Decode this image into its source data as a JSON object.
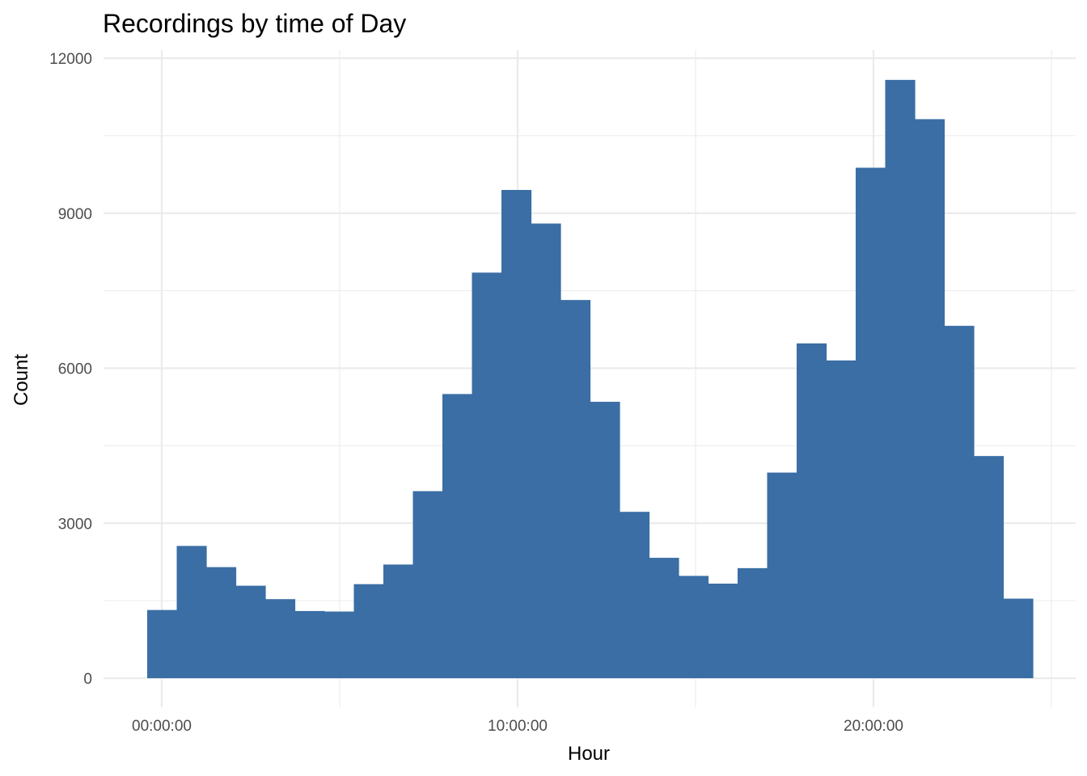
{
  "chart_data": {
    "type": "bar",
    "title": "Recordings by time of Day",
    "xlabel": "Hour",
    "ylabel": "Count",
    "x_ticks": [
      "00:00:00",
      "10:00:00",
      "20:00:00"
    ],
    "y_ticks": [
      "0",
      "3000",
      "6000",
      "9000",
      "12000"
    ],
    "bins": [
      "00:00",
      "00:50",
      "01:40",
      "02:30",
      "03:20",
      "04:10",
      "05:00",
      "05:50",
      "06:40",
      "07:30",
      "08:20",
      "09:10",
      "10:00",
      "10:50",
      "11:40",
      "12:30",
      "13:20",
      "14:10",
      "15:00",
      "15:50",
      "16:40",
      "17:30",
      "18:20",
      "19:10",
      "20:00",
      "20:50",
      "21:40",
      "22:30",
      "23:20",
      "24:10"
    ],
    "values": [
      1320,
      2560,
      2150,
      1790,
      1530,
      1300,
      1290,
      1820,
      2200,
      3620,
      5500,
      7850,
      9450,
      8800,
      7320,
      5350,
      3220,
      2330,
      1980,
      1830,
      2130,
      3980,
      6480,
      6150,
      9880,
      11580,
      10820,
      6820,
      4300,
      1540
    ],
    "ylim": [
      0,
      12000
    ],
    "grid": true,
    "legend": "none",
    "bar_color": "#3a6ea5",
    "grid_color": "#ebebeb"
  }
}
